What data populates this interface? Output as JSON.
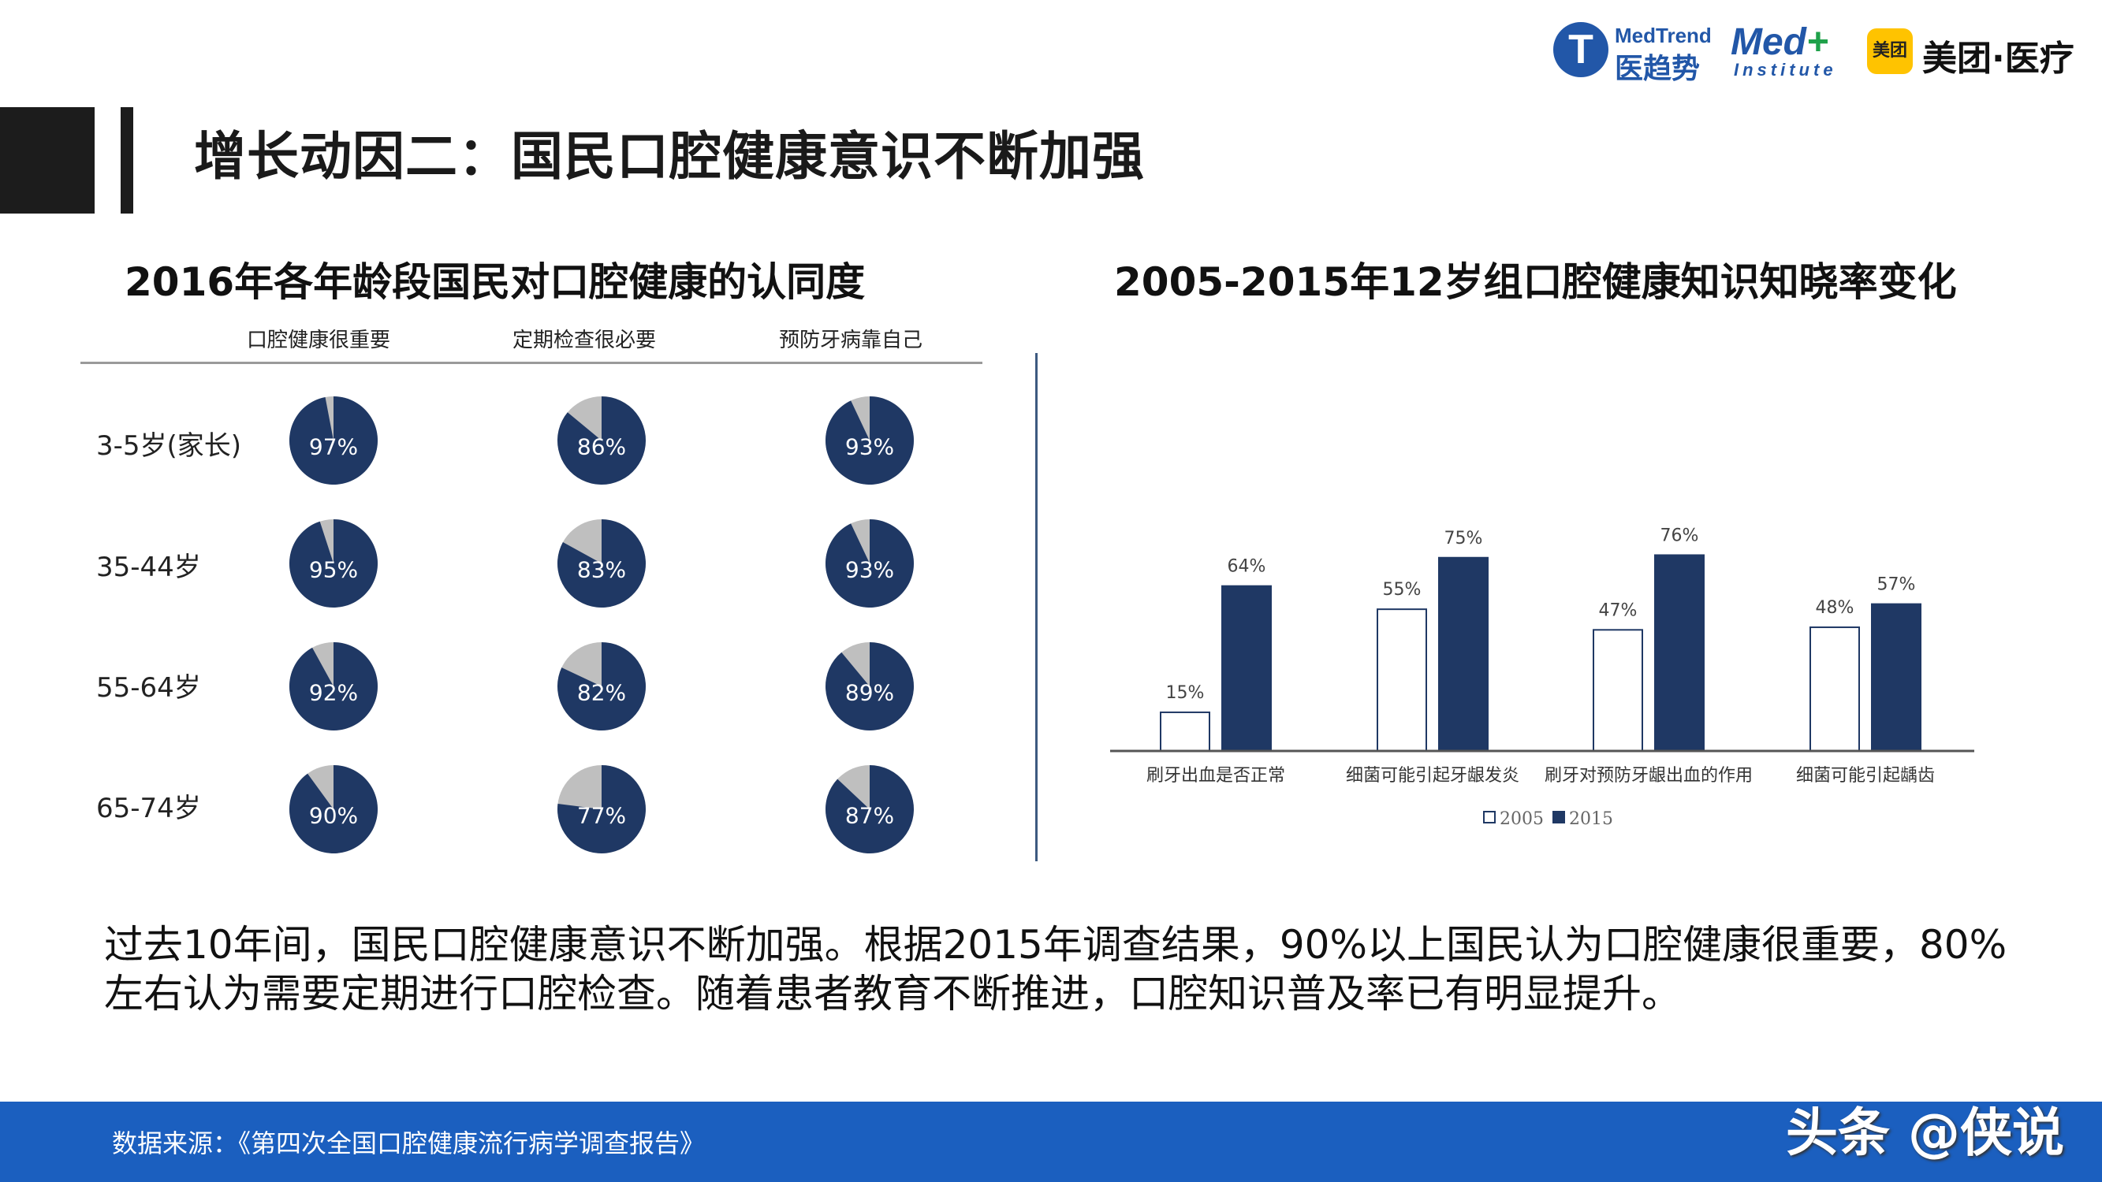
{
  "slide": {
    "title": "增长动因二：国民口腔健康意识不断加强"
  },
  "logos": {
    "medtrend_mark": "T",
    "medtrend_en": "MedTrend",
    "medtrend_cn": "医趋势",
    "med_plus_main": "Med",
    "med_plus_sign": "+",
    "med_plus_sub": "Institute",
    "meituan_mark": "美团",
    "meituan_name": "美团·医疗"
  },
  "left_chart": {
    "title": "2016年各年龄段国民对口腔健康的认同度",
    "columns": [
      "口腔健康很重要",
      "定期检查很必要",
      "预防牙病靠自己"
    ],
    "rows": [
      "3-5岁(家长)",
      "35-44岁",
      "55-64岁",
      "65-74岁"
    ]
  },
  "right_chart": {
    "title": "2005-2015年12岁组口腔健康知识知晓率变化"
  },
  "paragraph": "过去10年间，国民口腔健康意识不断加强。根据2015年调查结果，90%以上国民认为口腔健康很重要，80%左右认为需要定期进行口腔检查。随着患者教育不断推进，口腔知识普及率已有明显提升。",
  "footer": {
    "source": "数据来源：《第四次全国口腔健康流行病学调查报告》",
    "watermark": "头条 @侠说"
  },
  "colors": {
    "navy": "#1f3864",
    "pie_rest": "#bfbfbf",
    "footer_blue": "#1b5fbf"
  },
  "chart_data": [
    {
      "type": "pie",
      "title": "2016年各年龄段国民对口腔健康的认同度",
      "categories": [
        "口腔健康很重要",
        "定期检查很必要",
        "预防牙病靠自己"
      ],
      "series": [
        {
          "name": "3-5岁(家长)",
          "values": [
            97,
            86,
            93
          ]
        },
        {
          "name": "35-44岁",
          "values": [
            95,
            83,
            93
          ]
        },
        {
          "name": "55-64岁",
          "values": [
            92,
            82,
            89
          ]
        },
        {
          "name": "65-74岁",
          "values": [
            90,
            77,
            87
          ]
        }
      ],
      "unit": "%"
    },
    {
      "type": "bar",
      "title": "2005-2015年12岁组口腔健康知识知晓率变化",
      "categories": [
        "刷牙出血是否正常",
        "细菌可能引起牙龈发炎",
        "刷牙对预防牙龈出血的作用",
        "细菌可能引起龋齿"
      ],
      "series": [
        {
          "name": "2005",
          "values": [
            15,
            55,
            47,
            48
          ],
          "color": "#ffffff"
        },
        {
          "name": "2015",
          "values": [
            64,
            75,
            76,
            57
          ],
          "color": "#1f3864"
        }
      ],
      "unit": "%",
      "ylim": [
        0,
        100
      ],
      "legend": "bottom",
      "grid": false
    }
  ]
}
